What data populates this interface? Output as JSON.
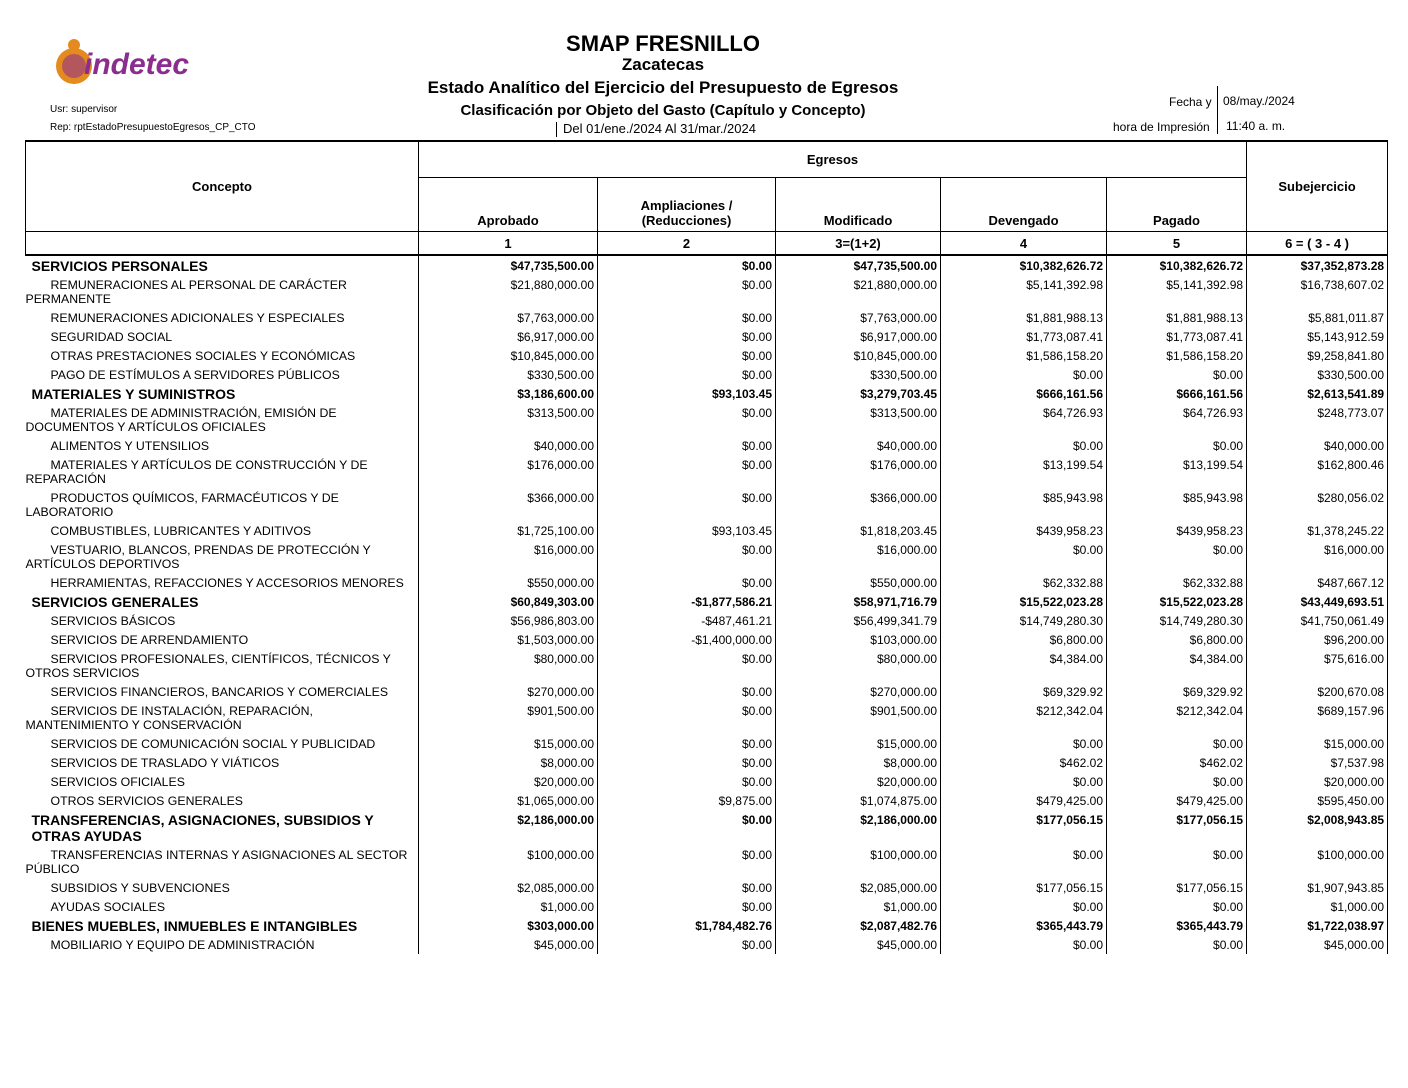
{
  "header": {
    "logo": "indetec",
    "title": "SMAP FRESNILLO",
    "subtitle": "Zacatecas",
    "report_title": "Estado Analítico del Ejercicio del Presupuesto de Egresos",
    "report_subtitle": "Clasificación por Objeto del Gasto (Capítulo y Concepto)",
    "period": "Del 01/ene./2024 Al 31/mar./2024",
    "user": "Usr: supervisor",
    "report": "Rep: rptEstadoPresupuestoEgresos_CP_CTO",
    "date_label": "Fecha y",
    "date": "08/may./2024",
    "time_label": "hora de Impresión",
    "time": "11:40 a. m."
  },
  "table": {
    "concept_header": "Concepto",
    "group_header": "Egresos",
    "columns": [
      "Aprobado",
      "Ampliaciones / (Reducciones)",
      "Modificado",
      "Devengado",
      "Pagado",
      "Subejercicio"
    ],
    "column_numbers": [
      "1",
      "2",
      "3=(1+2)",
      "4",
      "5",
      "6 = ( 3 - 4 )"
    ],
    "sections": [
      {
        "concept": "SERVICIOS PERSONALES",
        "values": [
          "$47,735,500.00",
          "$0.00",
          "$47,735,500.00",
          "$10,382,626.72",
          "$10,382,626.72",
          "$37,352,873.28"
        ],
        "items": [
          {
            "concept": "REMUNERACIONES AL PERSONAL DE CARÁCTER PERMANENTE",
            "values": [
              "$21,880,000.00",
              "$0.00",
              "$21,880,000.00",
              "$5,141,392.98",
              "$5,141,392.98",
              "$16,738,607.02"
            ]
          },
          {
            "concept": "REMUNERACIONES ADICIONALES Y ESPECIALES",
            "values": [
              "$7,763,000.00",
              "$0.00",
              "$7,763,000.00",
              "$1,881,988.13",
              "$1,881,988.13",
              "$5,881,011.87"
            ]
          },
          {
            "concept": "SEGURIDAD SOCIAL",
            "values": [
              "$6,917,000.00",
              "$0.00",
              "$6,917,000.00",
              "$1,773,087.41",
              "$1,773,087.41",
              "$5,143,912.59"
            ]
          },
          {
            "concept": "OTRAS PRESTACIONES SOCIALES Y ECONÓMICAS",
            "values": [
              "$10,845,000.00",
              "$0.00",
              "$10,845,000.00",
              "$1,586,158.20",
              "$1,586,158.20",
              "$9,258,841.80"
            ]
          },
          {
            "concept": "PAGO DE ESTÍMULOS A SERVIDORES PÚBLICOS",
            "values": [
              "$330,500.00",
              "$0.00",
              "$330,500.00",
              "$0.00",
              "$0.00",
              "$330,500.00"
            ]
          }
        ]
      },
      {
        "concept": "MATERIALES Y SUMINISTROS",
        "values": [
          "$3,186,600.00",
          "$93,103.45",
          "$3,279,703.45",
          "$666,161.56",
          "$666,161.56",
          "$2,613,541.89"
        ],
        "items": [
          {
            "concept": "MATERIALES DE ADMINISTRACIÓN, EMISIÓN DE DOCUMENTOS Y ARTÍCULOS OFICIALES",
            "values": [
              "$313,500.00",
              "$0.00",
              "$313,500.00",
              "$64,726.93",
              "$64,726.93",
              "$248,773.07"
            ]
          },
          {
            "concept": "ALIMENTOS Y UTENSILIOS",
            "values": [
              "$40,000.00",
              "$0.00",
              "$40,000.00",
              "$0.00",
              "$0.00",
              "$40,000.00"
            ]
          },
          {
            "concept": "MATERIALES Y ARTÍCULOS DE CONSTRUCCIÓN Y DE REPARACIÓN",
            "values": [
              "$176,000.00",
              "$0.00",
              "$176,000.00",
              "$13,199.54",
              "$13,199.54",
              "$162,800.46"
            ]
          },
          {
            "concept": "PRODUCTOS QUÍMICOS, FARMACÉUTICOS Y DE LABORATORIO",
            "values": [
              "$366,000.00",
              "$0.00",
              "$366,000.00",
              "$85,943.98",
              "$85,943.98",
              "$280,056.02"
            ]
          },
          {
            "concept": "COMBUSTIBLES, LUBRICANTES Y ADITIVOS",
            "values": [
              "$1,725,100.00",
              "$93,103.45",
              "$1,818,203.45",
              "$439,958.23",
              "$439,958.23",
              "$1,378,245.22"
            ]
          },
          {
            "concept": "VESTUARIO, BLANCOS, PRENDAS DE PROTECCIÓN Y ARTÍCULOS DEPORTIVOS",
            "values": [
              "$16,000.00",
              "$0.00",
              "$16,000.00",
              "$0.00",
              "$0.00",
              "$16,000.00"
            ]
          },
          {
            "concept": "HERRAMIENTAS, REFACCIONES Y ACCESORIOS MENORES",
            "values": [
              "$550,000.00",
              "$0.00",
              "$550,000.00",
              "$62,332.88",
              "$62,332.88",
              "$487,667.12"
            ]
          }
        ]
      },
      {
        "concept": "SERVICIOS GENERALES",
        "values": [
          "$60,849,303.00",
          "-$1,877,586.21",
          "$58,971,716.79",
          "$15,522,023.28",
          "$15,522,023.28",
          "$43,449,693.51"
        ],
        "items": [
          {
            "concept": "SERVICIOS BÁSICOS",
            "values": [
              "$56,986,803.00",
              "-$487,461.21",
              "$56,499,341.79",
              "$14,749,280.30",
              "$14,749,280.30",
              "$41,750,061.49"
            ]
          },
          {
            "concept": "SERVICIOS DE ARRENDAMIENTO",
            "values": [
              "$1,503,000.00",
              "-$1,400,000.00",
              "$103,000.00",
              "$6,800.00",
              "$6,800.00",
              "$96,200.00"
            ]
          },
          {
            "concept": "SERVICIOS PROFESIONALES, CIENTÍFICOS, TÉCNICOS Y OTROS SERVICIOS",
            "values": [
              "$80,000.00",
              "$0.00",
              "$80,000.00",
              "$4,384.00",
              "$4,384.00",
              "$75,616.00"
            ]
          },
          {
            "concept": "SERVICIOS FINANCIEROS, BANCARIOS Y COMERCIALES",
            "values": [
              "$270,000.00",
              "$0.00",
              "$270,000.00",
              "$69,329.92",
              "$69,329.92",
              "$200,670.08"
            ]
          },
          {
            "concept": "SERVICIOS DE INSTALACIÓN, REPARACIÓN, MANTENIMIENTO Y CONSERVACIÓN",
            "values": [
              "$901,500.00",
              "$0.00",
              "$901,500.00",
              "$212,342.04",
              "$212,342.04",
              "$689,157.96"
            ]
          },
          {
            "concept": "SERVICIOS DE COMUNICACIÓN SOCIAL Y PUBLICIDAD",
            "values": [
              "$15,000.00",
              "$0.00",
              "$15,000.00",
              "$0.00",
              "$0.00",
              "$15,000.00"
            ]
          },
          {
            "concept": "SERVICIOS DE TRASLADO Y VIÁTICOS",
            "values": [
              "$8,000.00",
              "$0.00",
              "$8,000.00",
              "$462.02",
              "$462.02",
              "$7,537.98"
            ]
          },
          {
            "concept": "SERVICIOS OFICIALES",
            "values": [
              "$20,000.00",
              "$0.00",
              "$20,000.00",
              "$0.00",
              "$0.00",
              "$20,000.00"
            ]
          },
          {
            "concept": "OTROS SERVICIOS GENERALES",
            "values": [
              "$1,065,000.00",
              "$9,875.00",
              "$1,074,875.00",
              "$479,425.00",
              "$479,425.00",
              "$595,450.00"
            ]
          }
        ]
      },
      {
        "concept": "TRANSFERENCIAS, ASIGNACIONES, SUBSIDIOS Y OTRAS AYUDAS",
        "values": [
          "$2,186,000.00",
          "$0.00",
          "$2,186,000.00",
          "$177,056.15",
          "$177,056.15",
          "$2,008,943.85"
        ],
        "items": [
          {
            "concept": "TRANSFERENCIAS INTERNAS Y ASIGNACIONES AL SECTOR PÚBLICO",
            "values": [
              "$100,000.00",
              "$0.00",
              "$100,000.00",
              "$0.00",
              "$0.00",
              "$100,000.00"
            ]
          },
          {
            "concept": "SUBSIDIOS Y SUBVENCIONES",
            "values": [
              "$2,085,000.00",
              "$0.00",
              "$2,085,000.00",
              "$177,056.15",
              "$177,056.15",
              "$1,907,943.85"
            ]
          },
          {
            "concept": "AYUDAS SOCIALES",
            "values": [
              "$1,000.00",
              "$0.00",
              "$1,000.00",
              "$0.00",
              "$0.00",
              "$1,000.00"
            ]
          }
        ]
      },
      {
        "concept": "BIENES MUEBLES, INMUEBLES E INTANGIBLES",
        "values": [
          "$303,000.00",
          "$1,784,482.76",
          "$2,087,482.76",
          "$365,443.79",
          "$365,443.79",
          "$1,722,038.97"
        ],
        "items": [
          {
            "concept": "MOBILIARIO Y EQUIPO DE ADMINISTRACIÓN",
            "values": [
              "$45,000.00",
              "$0.00",
              "$45,000.00",
              "$0.00",
              "$0.00",
              "$45,000.00"
            ]
          }
        ]
      }
    ]
  }
}
